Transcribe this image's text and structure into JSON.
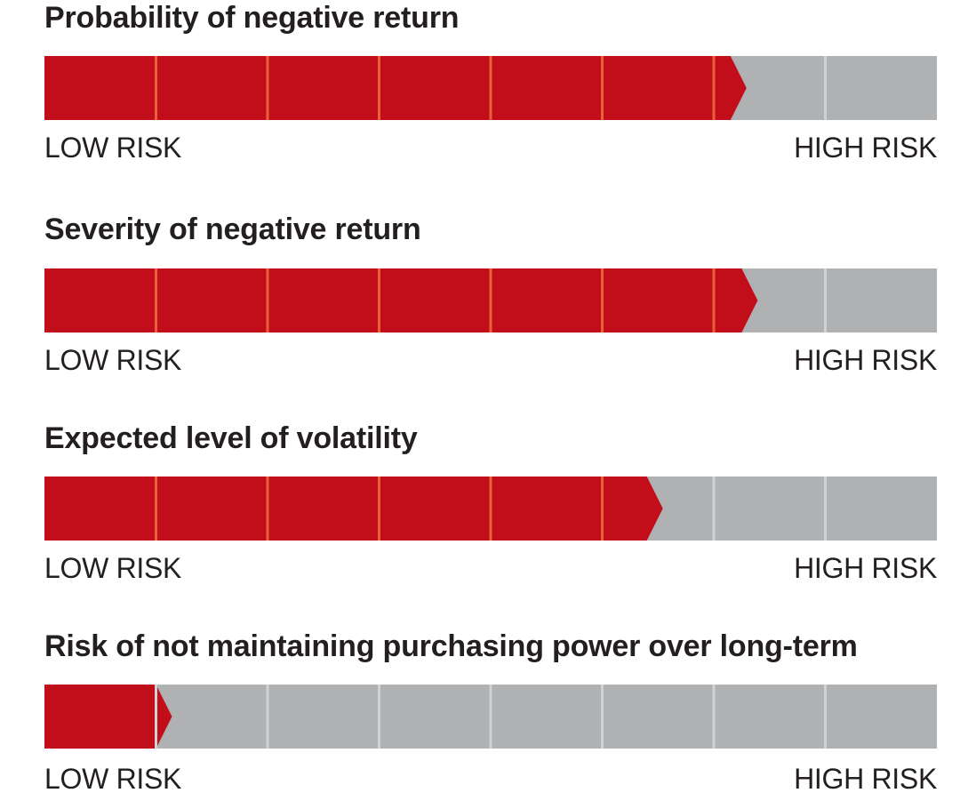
{
  "colors": {
    "fill": "#c20e1a",
    "empty": "#b0b1b3",
    "divider_on_fill": "#e8603c",
    "divider_on_empty": "#d0d1d3"
  },
  "chart_data": [
    {
      "type": "bar",
      "title": "Probability of negative return",
      "scale_min_label": "LOW RISK",
      "scale_max_label": "HIGH RISK",
      "segments": 8,
      "value": 6.15
    },
    {
      "type": "bar",
      "title": "Severity of negative return",
      "scale_min_label": "LOW RISK",
      "scale_max_label": "HIGH RISK",
      "segments": 8,
      "value": 6.25
    },
    {
      "type": "bar",
      "title": "Expected level of volatility",
      "scale_min_label": "LOW RISK",
      "scale_max_label": "HIGH RISK",
      "segments": 8,
      "value": 5.4
    },
    {
      "type": "bar",
      "title": "Risk of not maintaining purchasing power over long-term",
      "scale_min_label": "LOW RISK",
      "scale_max_label": "HIGH RISK",
      "segments": 8,
      "value": 1.0
    }
  ]
}
